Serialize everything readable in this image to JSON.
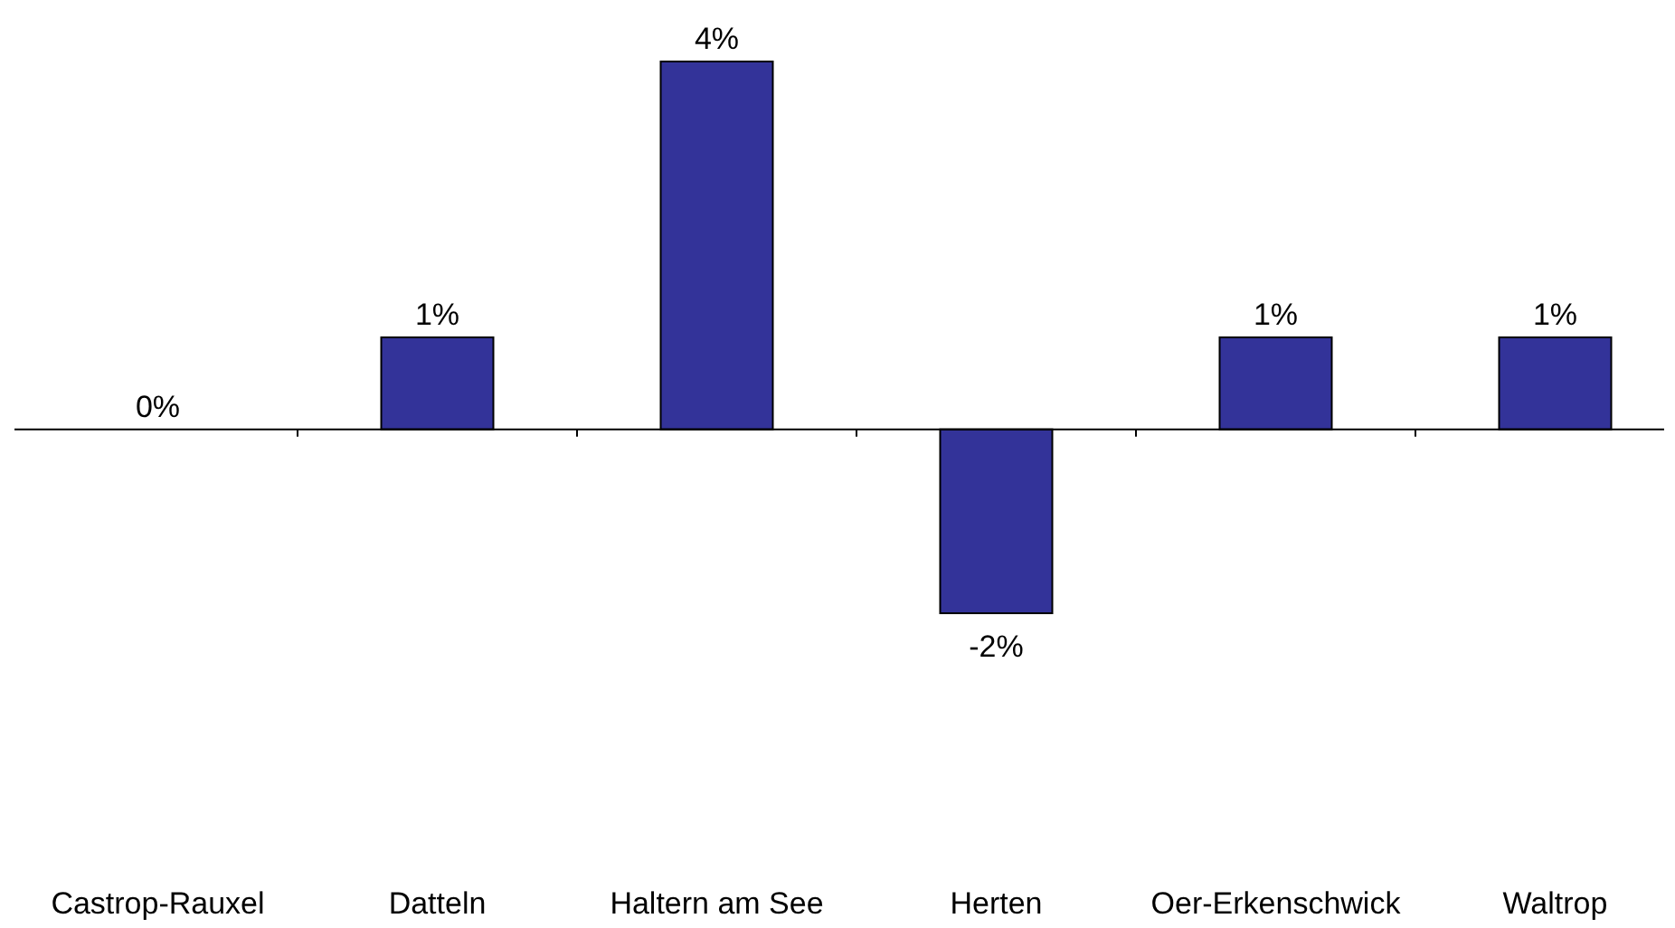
{
  "chart_data": {
    "type": "bar",
    "categories": [
      "Castrop-Rauxel",
      "Datteln",
      "Haltern am See",
      "Herten",
      "Oer-Erkenschwick",
      "Waltrop"
    ],
    "values": [
      0,
      1,
      4,
      -2,
      1,
      1
    ],
    "color": "#333399",
    "value_labels": [
      "0%",
      "1%",
      "4%",
      "-2%",
      "1%",
      "1%"
    ]
  }
}
